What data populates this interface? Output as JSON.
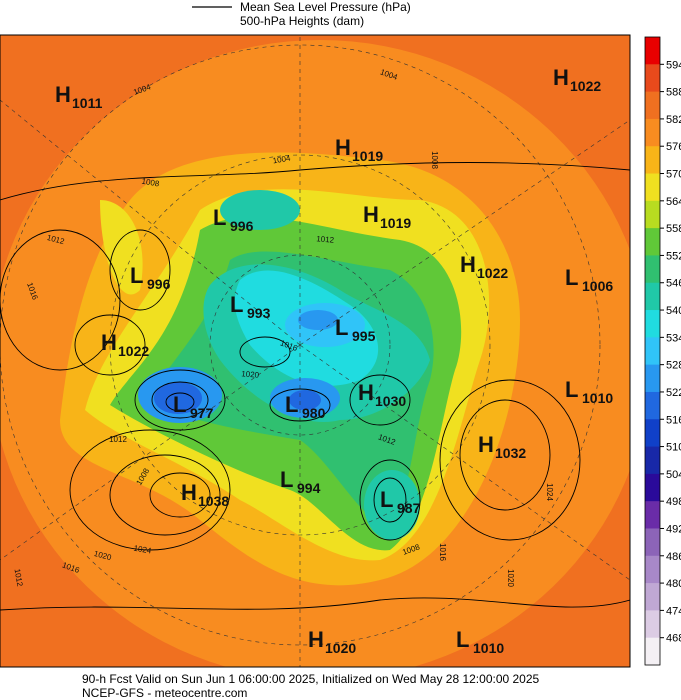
{
  "legend": {
    "line_label": "Mean Sea Level Pressure (hPa)",
    "fill_label": "500-hPa Heights (dam)"
  },
  "centers": [
    {
      "type": "H",
      "value": 1011
    },
    {
      "type": "H",
      "value": 1022
    },
    {
      "type": "H",
      "value": 1019
    },
    {
      "type": "H",
      "value": 1019
    },
    {
      "type": "L",
      "value": 996
    },
    {
      "type": "H",
      "value": 1022
    },
    {
      "type": "L",
      "value": 996
    },
    {
      "type": "L",
      "value": 1006
    },
    {
      "type": "L",
      "value": 993
    },
    {
      "type": "L",
      "value": 995
    },
    {
      "type": "H",
      "value": 1022
    },
    {
      "type": "L",
      "value": 1010
    },
    {
      "type": "H",
      "value": 1030
    },
    {
      "type": "L",
      "value": 977
    },
    {
      "type": "L",
      "value": 980
    },
    {
      "type": "H",
      "value": 1032
    },
    {
      "type": "L",
      "value": 994
    },
    {
      "type": "H",
      "value": 1038
    },
    {
      "type": "L",
      "value": 987
    },
    {
      "type": "H",
      "value": 1020
    },
    {
      "type": "L",
      "value": 1010
    }
  ],
  "contour_labels": [
    1004,
    1004,
    1004,
    1008,
    1012,
    1016,
    1012,
    1016,
    1020,
    1012,
    1008,
    1024,
    1020,
    1016,
    1012,
    1024,
    1020,
    1016,
    1008,
    1012,
    1008
  ],
  "colorbar": {
    "ticks": [
      594,
      588,
      582,
      576,
      570,
      564,
      558,
      552,
      546,
      540,
      534,
      528,
      522,
      516,
      510,
      504,
      498,
      492,
      486,
      480,
      474,
      468
    ],
    "colors": [
      "#e80000",
      "#e84a1c",
      "#f07020",
      "#f88c20",
      "#f8b418",
      "#f0e020",
      "#b8dc20",
      "#60c838",
      "#30c070",
      "#20c8a8",
      "#20dce0",
      "#30c4f8",
      "#2898f0",
      "#2068e0",
      "#1040c8",
      "#1828a8",
      "#2a0a9a",
      "#6a2ca8",
      "#8c64b8",
      "#a888c8",
      "#c0a8d4",
      "#dccce4",
      "#f4f0f4"
    ]
  },
  "footer": {
    "line1": "90-h Fcst Valid on Sun Jun  1 06:00:00 2025, Initialized on Wed May 28 12:00:00 2025",
    "line2": "NCEP-GFS  - meteocentre.com"
  }
}
